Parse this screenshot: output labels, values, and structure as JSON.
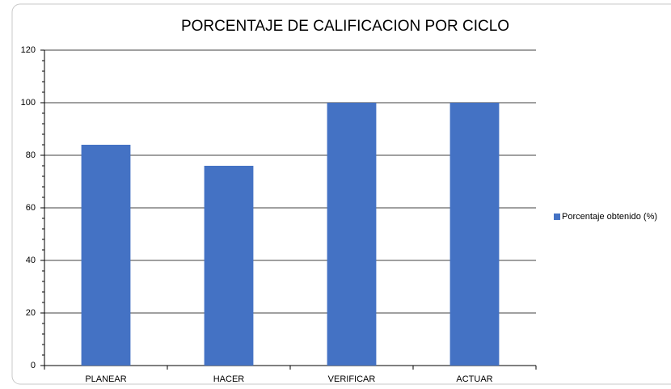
{
  "chart_data": {
    "type": "bar",
    "title": "PORCENTAJE DE CALIFICACION POR CICLO",
    "categories": [
      "PLANEAR",
      "HACER",
      "VERIFICAR",
      "ACTUAR"
    ],
    "series": [
      {
        "name": "Porcentaje obtenido (%)",
        "color": "#4472c4",
        "values": [
          84,
          76,
          100,
          100
        ]
      }
    ],
    "ylim": [
      0,
      120
    ],
    "yticks": [
      0,
      20,
      40,
      60,
      80,
      100,
      120
    ],
    "grid": true,
    "legend": "right"
  }
}
